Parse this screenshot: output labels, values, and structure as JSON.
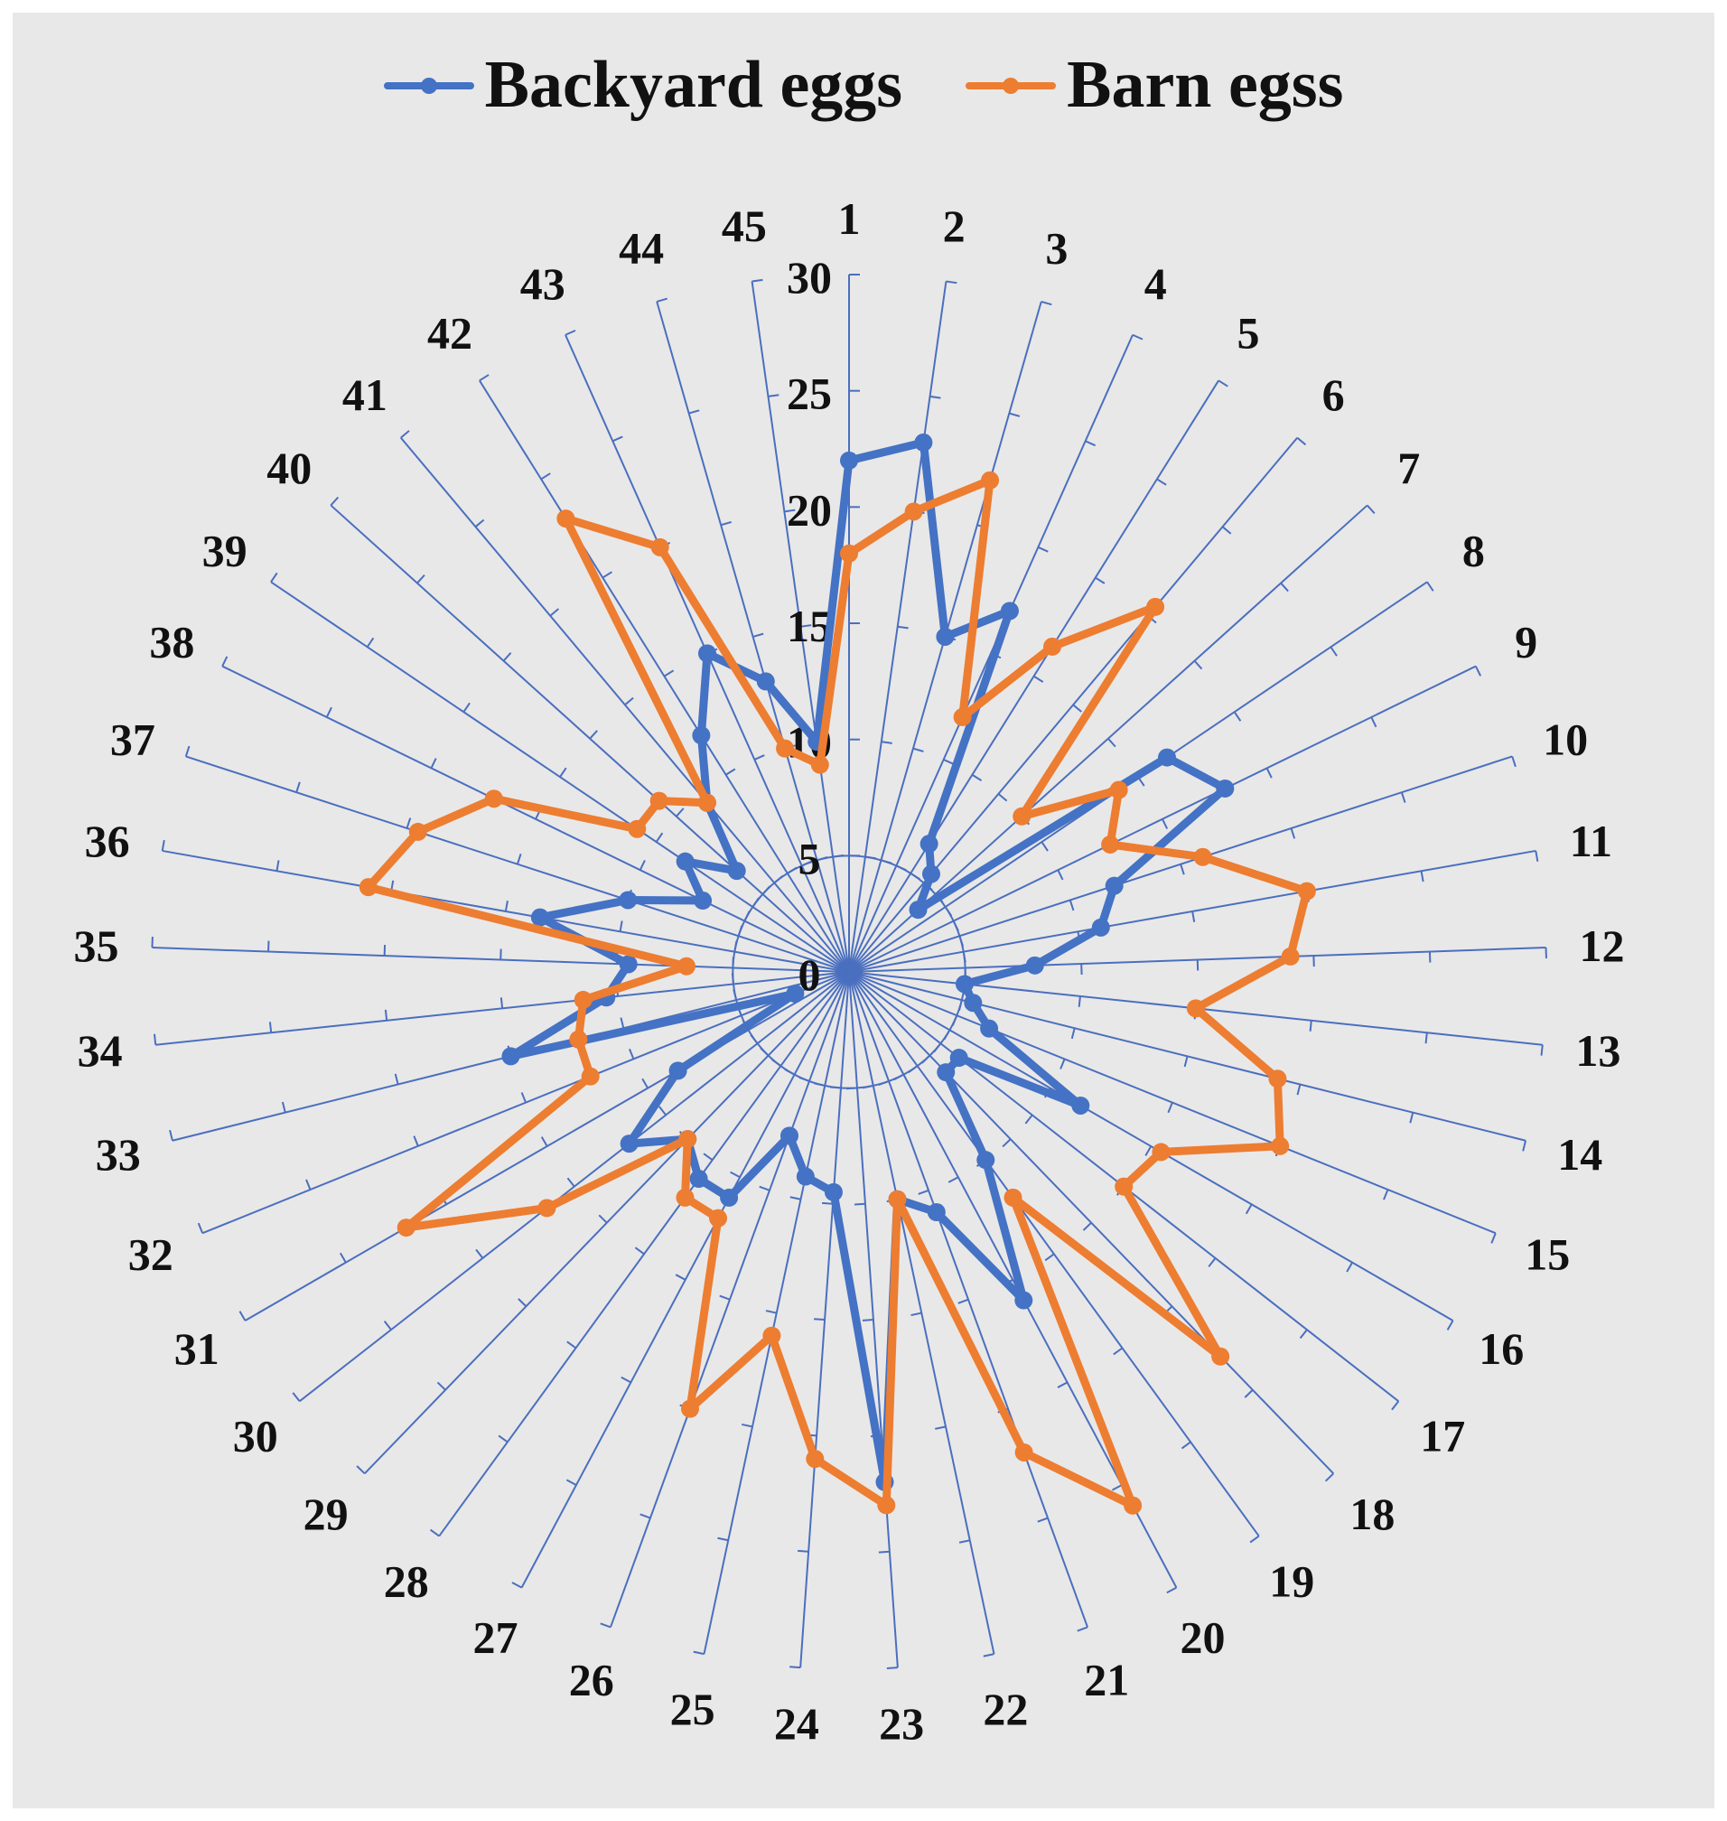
{
  "chart_data": {
    "type": "radar",
    "title": "",
    "categories": [
      "1",
      "2",
      "3",
      "4",
      "5",
      "6",
      "7",
      "8",
      "9",
      "10",
      "11",
      "12",
      "13",
      "14",
      "15",
      "16",
      "17",
      "18",
      "19",
      "20",
      "21",
      "22",
      "23",
      "24",
      "25",
      "26",
      "27",
      "28",
      "29",
      "30",
      "31",
      "32",
      "33",
      "34",
      "35",
      "36",
      "37",
      "38",
      "39",
      "40",
      "41",
      "42",
      "43",
      "44",
      "45"
    ],
    "radial_ticks": [
      "0",
      "5",
      "10",
      "15",
      "20",
      "25",
      "30"
    ],
    "rlim": [
      0,
      30
    ],
    "grid_circle_at": 5,
    "legend_position": "top",
    "series": [
      {
        "name": "Backyard eggs",
        "color": "#4472c4",
        "values": [
          22,
          23,
          15,
          17,
          6.5,
          5.5,
          4,
          16.5,
          18,
          12,
          11,
          8,
          5,
          5.5,
          6.5,
          11.5,
          6,
          6,
          10,
          16,
          11,
          10,
          22,
          9.5,
          9,
          7.5,
          11,
          11,
          10,
          12,
          8.5,
          2.5,
          15,
          10.5,
          9.5,
          13.5,
          10,
          7,
          8.5,
          6.5,
          9.5,
          12,
          15,
          13,
          10
        ]
      },
      {
        "name": "Barn egss",
        "color": "#ed7d31",
        "values": [
          18,
          20,
          22,
          12,
          16.5,
          20.5,
          10,
          14,
          12.5,
          16,
          20,
          19,
          15,
          19,
          20,
          15.5,
          15,
          23,
          12,
          26,
          22,
          10,
          23,
          21,
          16,
          20,
          12,
          12,
          10,
          16.5,
          22,
          12,
          12,
          11.5,
          7,
          21,
          19.5,
          17,
          11,
          11,
          9.5,
          23,
          20,
          10,
          9
        ]
      }
    ]
  }
}
